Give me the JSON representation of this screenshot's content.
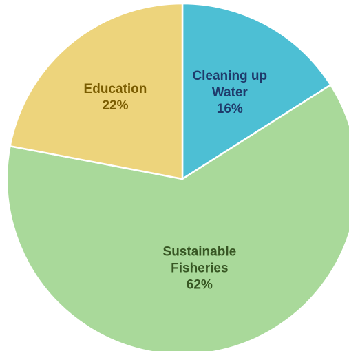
{
  "chart_data": {
    "type": "pie",
    "start_angle_deg": 0,
    "direction": "clockwise",
    "slices": [
      {
        "label_lines": [
          "Cleaning up",
          "Water"
        ],
        "value": 16,
        "value_text": "16%",
        "color": "#4DBFD4",
        "text_color": "#1F3A6B"
      },
      {
        "label_lines": [
          "Sustainable",
          "Fisheries"
        ],
        "value": 62,
        "value_text": "62%",
        "color": "#A9D99A",
        "text_color": "#375623"
      },
      {
        "label_lines": [
          "Education"
        ],
        "value": 22,
        "value_text": "22%",
        "color": "#EDD47C",
        "text_color": "#7A5C00"
      }
    ]
  }
}
